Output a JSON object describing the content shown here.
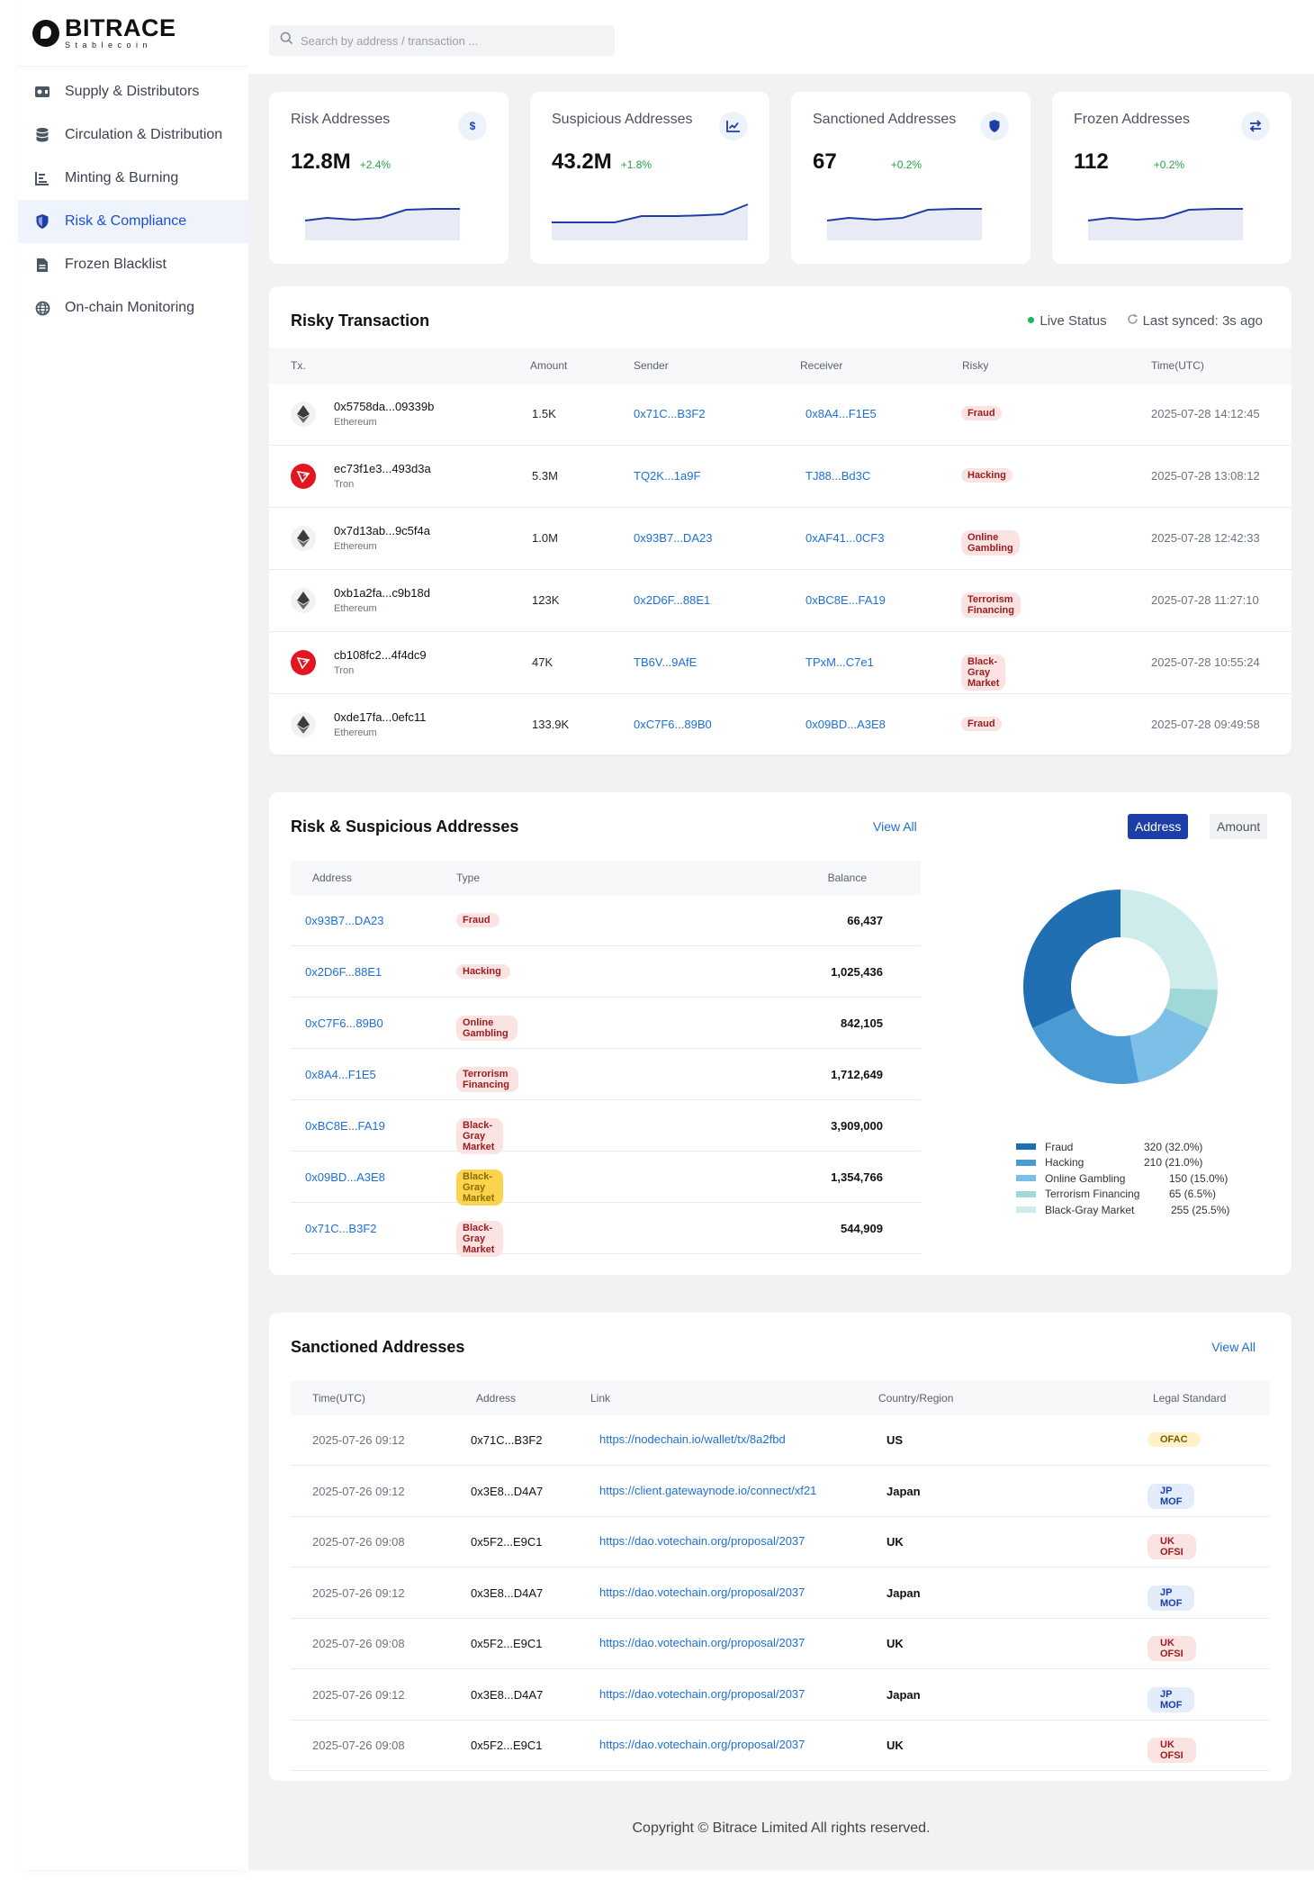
{
  "brand": {
    "name": "BITRACE",
    "sub": "Stablecoin"
  },
  "sidebar": {
    "items": [
      {
        "label": "Supply  & Distributors",
        "icon": "wallet-icon"
      },
      {
        "label": "Circulation & Distribution",
        "icon": "database-icon"
      },
      {
        "label": "Minting & Burning",
        "icon": "bar-chart-icon"
      },
      {
        "label": "Risk & Compliance",
        "icon": "shield-icon"
      },
      {
        "label": "Frozen Blacklist",
        "icon": "document-icon"
      },
      {
        "label": "On-chain Monitoring",
        "icon": "globe-icon"
      }
    ],
    "active_index": 3
  },
  "search": {
    "placeholder": "Search by address / transaction ..."
  },
  "stats": [
    {
      "title": "Risk Addresses",
      "value": "12.8M",
      "change": "+2.4%",
      "icon": "dollar-icon"
    },
    {
      "title": "Suspicious Addresses",
      "value": "43.2M",
      "change": "+1.8%",
      "icon": "trend-chart-icon"
    },
    {
      "title": "Sanctioned Addresses",
      "value": "67",
      "change": "+0.2%",
      "icon": "shield-icon"
    },
    {
      "title": "Frozen Addresses",
      "value": "112",
      "change": "+0.2%",
      "icon": "swap-arrows-icon"
    }
  ],
  "risky_tx": {
    "title": "Risky Transaction",
    "live_status": "Live Status",
    "last_synced": "Last synced: 3s ago",
    "columns": {
      "tx": "Tx.",
      "amount": "Amount",
      "sender": "Sender",
      "receiver": "Receiver",
      "risky": "Risky",
      "time": "Time(UTC)"
    },
    "rows": [
      {
        "hash": "0x5758da...09339b",
        "chain": "Ethereum",
        "amount": "1.5K",
        "sender": "0x71C...B3F2",
        "receiver": "0x8A4...F1E5",
        "risk": "Fraud",
        "time": "2025-07-28 14:12:45"
      },
      {
        "hash": "ec73f1e3...493d3a",
        "chain": "Tron",
        "amount": "5.3M",
        "sender": "TQ2K...1a9F",
        "receiver": "TJ88...Bd3C",
        "risk": "Hacking",
        "time": "2025-07-28 13:08:12"
      },
      {
        "hash": "0x7d13ab...9c5f4a",
        "chain": "Ethereum",
        "amount": "1.0M",
        "sender": "0x93B7...DA23",
        "receiver": "0xAF41...0CF3",
        "risk": "Online Gambling",
        "time": "2025-07-28 12:42:33"
      },
      {
        "hash": "0xb1a2fa...c9b18d",
        "chain": "Ethereum",
        "amount": "123K",
        "sender": "0x2D6F...88E1",
        "receiver": "0xBC8E...FA19",
        "risk": "Terrorism Financing",
        "time": "2025-07-28 11:27:10"
      },
      {
        "hash": "cb108fc2...4f4dc9",
        "chain": "Tron",
        "amount": "47K",
        "sender": "TB6V...9AfE",
        "receiver": "TPxM...C7e1",
        "risk": "Black-Gray Market",
        "time": "2025-07-28 10:55:24"
      },
      {
        "hash": "0xde17fa...0efc11",
        "chain": "Ethereum",
        "amount": "133.9K",
        "sender": "0xC7F6...89B0",
        "receiver": "0x09BD...A3E8",
        "risk": "Fraud",
        "time": "2025-07-28 09:49:58"
      }
    ]
  },
  "risk_addresses": {
    "title": "Risk & Suspicious Addresses",
    "view_all": "View All",
    "toggle": {
      "address": "Address",
      "amount": "Amount"
    },
    "columns": {
      "address": "Address",
      "type": "Type",
      "balance": "Balance"
    },
    "rows": [
      {
        "address": "0x93B7...DA23",
        "type": "Fraud",
        "balance": "66,437",
        "highlight": false
      },
      {
        "address": "0x2D6F...88E1",
        "type": "Hacking",
        "balance": "1,025,436",
        "highlight": false
      },
      {
        "address": "0xC7F6...89B0",
        "type": "Online Gambling",
        "balance": "842,105",
        "highlight": false
      },
      {
        "address": "0x8A4...F1E5",
        "type": "Terrorism Financing",
        "balance": "1,712,649",
        "highlight": false
      },
      {
        "address": "0xBC8E...FA19",
        "type": "Black-Gray Market",
        "balance": "3,909,000",
        "highlight": false
      },
      {
        "address": "0x09BD...A3E8",
        "type": "Black-Gray Market",
        "balance": "1,354,766",
        "highlight": true
      },
      {
        "address": "0x71C...B3F2",
        "type": "Black-Gray Market",
        "balance": "544,909",
        "highlight": false
      }
    ]
  },
  "chart_data": {
    "type": "pie",
    "categories": [
      "Fraud",
      "Hacking",
      "Online Gambling",
      "Terrorism Financing",
      "Black-Gray Market"
    ],
    "values": [
      320,
      210,
      150,
      65,
      255
    ],
    "labels": [
      "320 (32.0%)",
      "210 (21.0%)",
      "150 (15.0%)",
      "65 (6.5%)",
      "255 (25.5%)"
    ],
    "colors": [
      "#1f6fb2",
      "#4a9bd4",
      "#7cc0e8",
      "#9fd8d6",
      "#cdeceb"
    ],
    "legend": "bottom"
  },
  "sanctioned": {
    "title": "Sanctioned Addresses",
    "view_all": "View All",
    "columns": {
      "time": "Time(UTC)",
      "address": "Address",
      "link": "Link",
      "country": "Country/Region",
      "legal": "Legal Standard"
    },
    "rows": [
      {
        "time": "2025-07-26 09:12",
        "address": "0x71C...B3F2",
        "link": "https://nodechain.io/wallet/tx/8a2fbd",
        "country": "US",
        "legal": "OFAC",
        "kind": "ofac"
      },
      {
        "time": "2025-07-26 09:12",
        "address": "0x3E8...D4A7",
        "link": "https://client.gatewaynode.io/connect/xf21",
        "country": "Japan",
        "legal": "JP MOF",
        "kind": "jp"
      },
      {
        "time": "2025-07-26 09:08",
        "address": "0x5F2...E9C1",
        "link": "https://dao.votechain.org/proposal/2037",
        "country": "UK",
        "legal": "UK OFSI",
        "kind": "uk"
      },
      {
        "time": "2025-07-26 09:12",
        "address": "0x3E8...D4A7",
        "link": "https://dao.votechain.org/proposal/2037",
        "country": "Japan",
        "legal": "JP MOF",
        "kind": "jp"
      },
      {
        "time": "2025-07-26 09:08",
        "address": "0x5F2...E9C1",
        "link": "https://dao.votechain.org/proposal/2037",
        "country": "UK",
        "legal": "UK OFSI",
        "kind": "uk"
      },
      {
        "time": "2025-07-26 09:12",
        "address": "0x3E8...D4A7",
        "link": "https://dao.votechain.org/proposal/2037",
        "country": "Japan",
        "legal": "JP MOF",
        "kind": "jp"
      },
      {
        "time": "2025-07-26 09:08",
        "address": "0x5F2...E9C1",
        "link": "https://dao.votechain.org/proposal/2037",
        "country": "UK",
        "legal": "UK OFSI",
        "kind": "uk"
      }
    ]
  },
  "footer": {
    "copyright": "Copyright © Bitrace Limited All rights reserved."
  }
}
